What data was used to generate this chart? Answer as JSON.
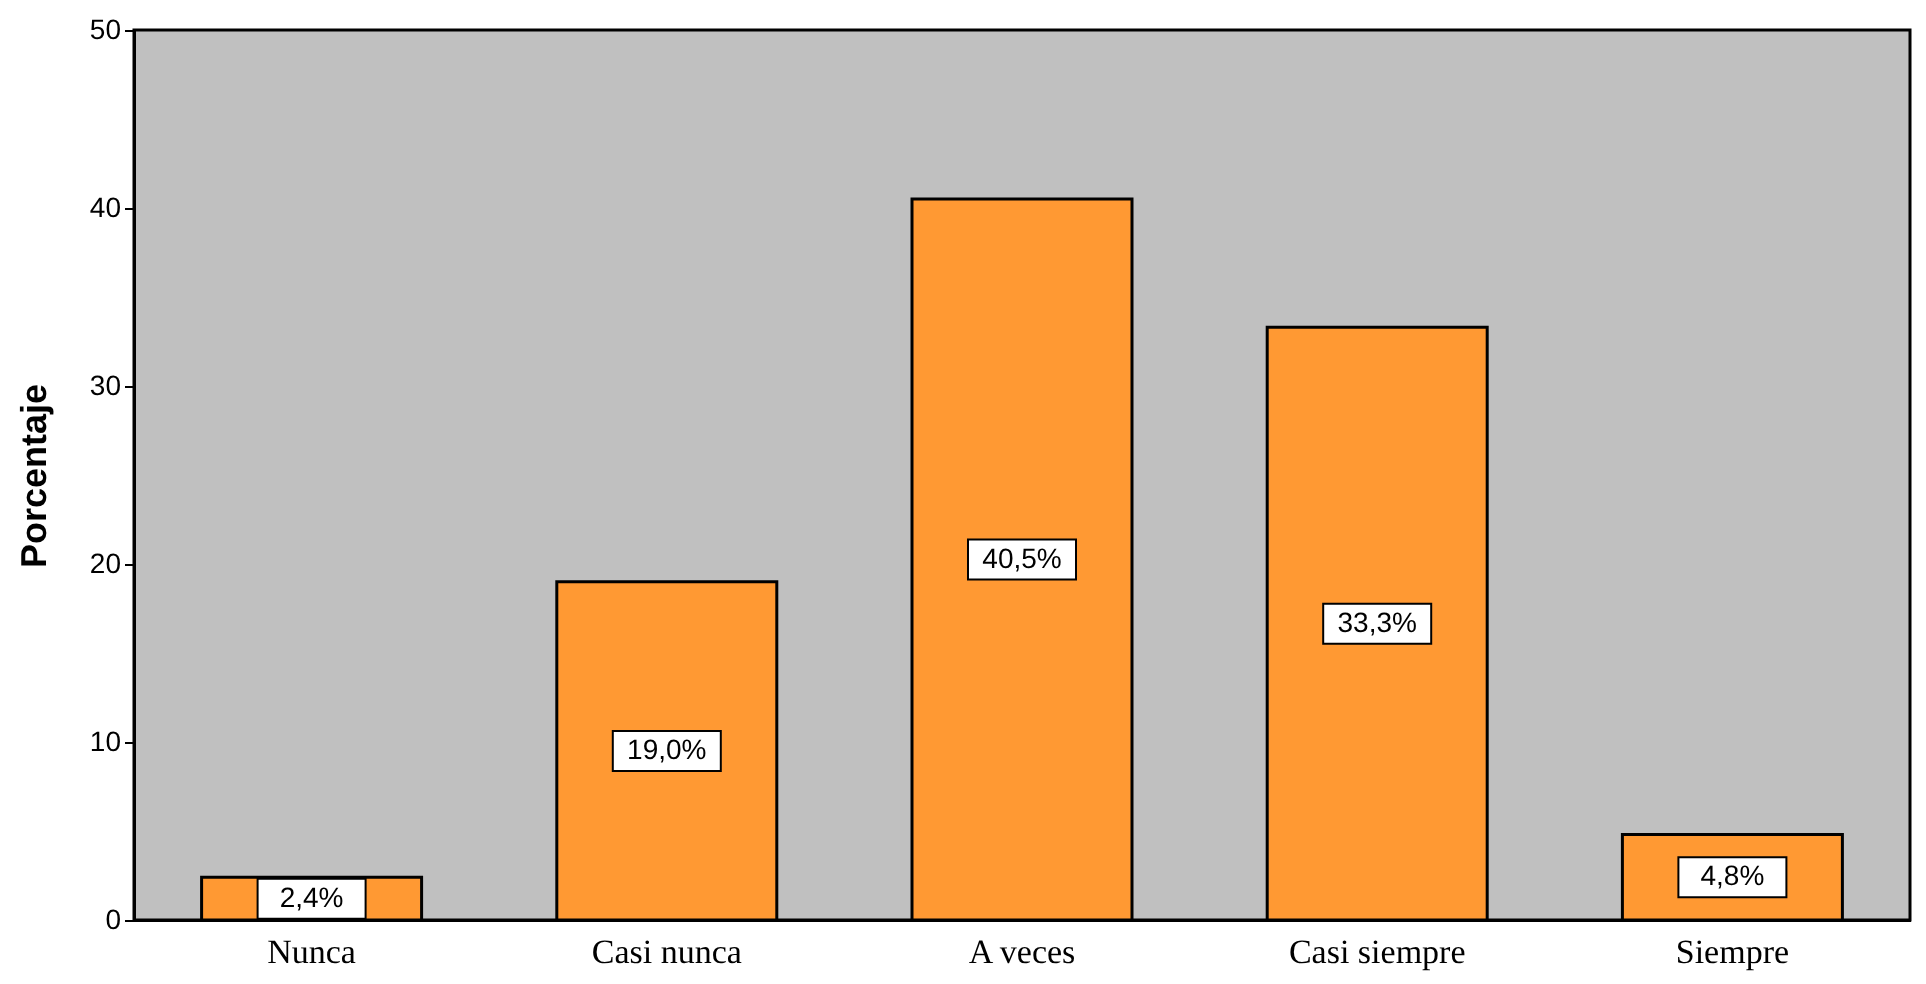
{
  "chart_data": {
    "type": "bar",
    "ylabel": "Porcentaje",
    "categories": [
      "Nunca",
      "Casi nunca",
      "A veces",
      "Casi siempre",
      "Siempre"
    ],
    "values": [
      2.4,
      19.0,
      40.5,
      33.3,
      4.8
    ],
    "value_labels": [
      "2,4%",
      "19,0%",
      "40,5%",
      "33,3%",
      "4,8%"
    ],
    "color": "#ff9933",
    "ylim": [
      0,
      50
    ],
    "yticks": [
      0,
      10,
      20,
      30,
      40,
      50
    ],
    "grid": false
  }
}
